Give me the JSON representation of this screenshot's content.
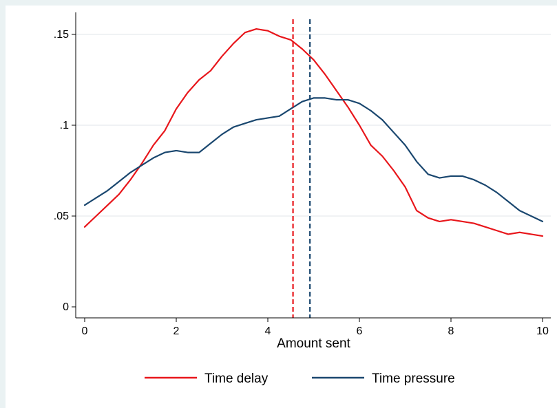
{
  "chart_data": {
    "type": "line",
    "title": "",
    "xlabel": "Amount sent",
    "ylabel": "",
    "xlim": [
      0,
      10
    ],
    "ylim": [
      0,
      0.157
    ],
    "x_ticks": [
      0,
      2,
      4,
      6,
      8,
      10
    ],
    "x_tick_labels": [
      "0",
      "2",
      "4",
      "6",
      "8",
      "10"
    ],
    "y_ticks": [
      0,
      0.05,
      0.1,
      0.15
    ],
    "y_tick_labels": [
      "0",
      ".05",
      ".1",
      ".15"
    ],
    "grid": "horizontal",
    "legend_position": "bottom",
    "series": [
      {
        "name": "Time delay",
        "color": "#e8161b",
        "x": [
          0,
          0.25,
          0.5,
          0.75,
          1.0,
          1.25,
          1.5,
          1.75,
          2.0,
          2.25,
          2.5,
          2.75,
          3.0,
          3.25,
          3.5,
          3.75,
          4.0,
          4.25,
          4.5,
          4.75,
          5.0,
          5.25,
          5.5,
          5.75,
          6.0,
          6.25,
          6.5,
          6.75,
          7.0,
          7.25,
          7.5,
          7.75,
          8.0,
          8.25,
          8.5,
          8.75,
          9.0,
          9.25,
          9.5,
          9.75,
          10.0
        ],
        "values": [
          0.044,
          0.05,
          0.056,
          0.062,
          0.07,
          0.079,
          0.089,
          0.097,
          0.109,
          0.118,
          0.125,
          0.13,
          0.138,
          0.145,
          0.151,
          0.153,
          0.152,
          0.149,
          0.147,
          0.142,
          0.136,
          0.128,
          0.119,
          0.11,
          0.1,
          0.089,
          0.083,
          0.075,
          0.066,
          0.053,
          0.049,
          0.047,
          0.048,
          0.047,
          0.046,
          0.044,
          0.042,
          0.04,
          0.041,
          0.04,
          0.039
        ]
      },
      {
        "name": "Time pressure",
        "color": "#1a476f",
        "x": [
          0,
          0.25,
          0.5,
          0.75,
          1.0,
          1.25,
          1.5,
          1.75,
          2.0,
          2.25,
          2.5,
          2.75,
          3.0,
          3.25,
          3.5,
          3.75,
          4.0,
          4.25,
          4.5,
          4.75,
          5.0,
          5.25,
          5.5,
          5.75,
          6.0,
          6.25,
          6.5,
          6.75,
          7.0,
          7.25,
          7.5,
          7.75,
          8.0,
          8.25,
          8.5,
          8.75,
          9.0,
          9.25,
          9.5,
          9.75,
          10.0
        ],
        "values": [
          0.056,
          0.06,
          0.064,
          0.069,
          0.074,
          0.078,
          0.082,
          0.085,
          0.086,
          0.085,
          0.085,
          0.09,
          0.095,
          0.099,
          0.101,
          0.103,
          0.104,
          0.105,
          0.109,
          0.113,
          0.115,
          0.115,
          0.114,
          0.114,
          0.112,
          0.108,
          0.103,
          0.096,
          0.089,
          0.08,
          0.073,
          0.071,
          0.072,
          0.072,
          0.07,
          0.067,
          0.063,
          0.058,
          0.053,
          0.05,
          0.047
        ]
      }
    ],
    "reference_lines": [
      {
        "x": 4.55,
        "color": "#e8161b",
        "style": "dashed"
      },
      {
        "x": 4.92,
        "color": "#1a476f",
        "style": "dashed"
      }
    ]
  }
}
